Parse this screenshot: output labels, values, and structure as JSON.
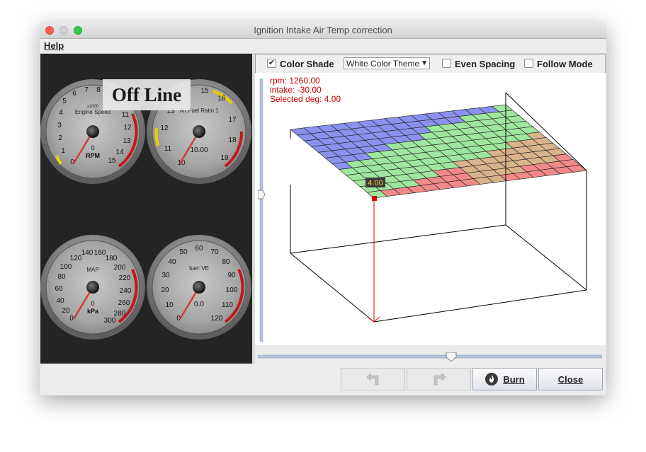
{
  "window": {
    "title": "Ignition Intake Air Temp correction"
  },
  "menu": {
    "help_label": "Help"
  },
  "status": {
    "offline_label": "Off Line"
  },
  "gauges": [
    {
      "id": "rpm",
      "labels": [
        "0",
        "1",
        "2",
        "3",
        "4",
        "5",
        "6",
        "7",
        "8",
        "11",
        "12",
        "13",
        "14",
        "15"
      ],
      "multiplier": "x1000",
      "title": "Engine Speed",
      "unit": "RPM",
      "value": "0"
    },
    {
      "id": "afr",
      "labels": [
        "10",
        "11",
        "12",
        "13",
        "15",
        "16",
        "17",
        "18",
        "19"
      ],
      "title": "Air:Fuel Ratio 1",
      "value": "10.00"
    },
    {
      "id": "map",
      "labels": [
        "0",
        "20",
        "40",
        "60",
        "80",
        "100",
        "120",
        "140",
        "160",
        "180",
        "200",
        "220",
        "240",
        "260",
        "280",
        "300"
      ],
      "title": "MAP",
      "unit": "kPa",
      "value": "0"
    },
    {
      "id": "ve",
      "labels": [
        "0",
        "10",
        "20",
        "30",
        "40",
        "50",
        "60",
        "70",
        "80",
        "90",
        "100",
        "110",
        "120"
      ],
      "title": "fuel: VE",
      "value": "0.0"
    }
  ],
  "toolbar": {
    "color_shade_label": "Color Shade",
    "color_shade_checked": true,
    "theme_selected": "White Color Theme",
    "even_spacing_label": "Even Spacing",
    "even_spacing_checked": false,
    "follow_mode_label": "Follow Mode",
    "follow_mode_checked": false
  },
  "plot_info": {
    "rpm_text": "rpm: 1260.00",
    "intake_text": "intake: -30.00",
    "selected_text": "Selected deg: 4.00",
    "cell_value_label": "4.00"
  },
  "buttons": {
    "burn_label": "Burn",
    "close_label": "Close"
  },
  "colors": {
    "info_text": "#d00000",
    "accent_red": "#e00000"
  },
  "icons": [
    "undo-icon",
    "redo-icon",
    "burn-icon",
    "checkmark-icon",
    "dropdown-arrow-icon"
  ]
}
